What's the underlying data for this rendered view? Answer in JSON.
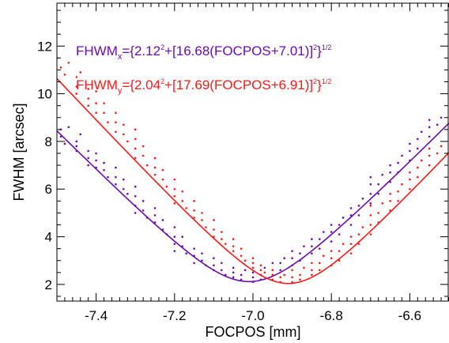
{
  "chart_data": {
    "type": "scatter",
    "xlabel": "FOCPOS [mm]",
    "ylabel": "FWHM [arcsec]",
    "xlim": [
      -7.5,
      -6.5
    ],
    "ylim": [
      1.3,
      13.8
    ],
    "x_ticks": [
      -7.4,
      -7.2,
      -7.0,
      -6.8,
      -6.6
    ],
    "x_tick_labels": [
      "-7.4",
      "-7.2",
      "-7.0",
      "-6.8",
      "-6.6"
    ],
    "y_ticks": [
      2,
      4,
      6,
      8,
      10,
      12
    ],
    "y_tick_labels": [
      "2",
      "4",
      "6",
      "8",
      "10",
      "12"
    ],
    "grid": false,
    "annotations": [
      {
        "series": "x",
        "color": "#6a0dad",
        "text_parts": [
          {
            "t": "FHWM",
            "sub": false,
            "sup": false
          },
          {
            "t": "x",
            "sub": true,
            "sup": false
          },
          {
            "t": "={2.12",
            "sub": false,
            "sup": false
          },
          {
            "t": "2",
            "sub": false,
            "sup": true
          },
          {
            "t": "+[16.68(FOCPOS+7.01)]",
            "sub": false,
            "sup": false
          },
          {
            "t": "2",
            "sub": false,
            "sup": true
          },
          {
            "t": "}",
            "sub": false,
            "sup": false
          },
          {
            "t": "1/2",
            "sub": false,
            "sup": true
          }
        ]
      },
      {
        "series": "y",
        "color": "#ff1a1a",
        "text_parts": [
          {
            "t": "FHWM",
            "sub": false,
            "sup": false
          },
          {
            "t": "y",
            "sub": true,
            "sup": false
          },
          {
            "t": "={2.04",
            "sub": false,
            "sup": false
          },
          {
            "t": "2",
            "sub": false,
            "sup": true
          },
          {
            "t": "+[17.69(FOCPOS+6.91)]",
            "sub": false,
            "sup": false
          },
          {
            "t": "2",
            "sub": false,
            "sup": true
          },
          {
            "t": "}",
            "sub": false,
            "sup": false
          },
          {
            "t": "1/2",
            "sub": false,
            "sup": true
          }
        ]
      }
    ],
    "series": [
      {
        "key": "x",
        "color": "#6a0dad",
        "fit": {
          "a": 2.12,
          "b": 16.68,
          "c": -7.01
        },
        "points": [
          [
            -7.49,
            8.5
          ],
          [
            -7.49,
            8.2
          ],
          [
            -7.48,
            7.9
          ],
          [
            -7.47,
            8.6
          ],
          [
            -7.45,
            8.0
          ],
          [
            -7.45,
            7.8
          ],
          [
            -7.45,
            7.6
          ],
          [
            -7.44,
            8.3
          ],
          [
            -7.42,
            7.6
          ],
          [
            -7.42,
            7.3
          ],
          [
            -7.42,
            7.0
          ],
          [
            -7.4,
            7.5
          ],
          [
            -7.4,
            7.2
          ],
          [
            -7.4,
            6.9
          ],
          [
            -7.38,
            7.1
          ],
          [
            -7.38,
            6.8
          ],
          [
            -7.37,
            6.5
          ],
          [
            -7.35,
            6.9
          ],
          [
            -7.35,
            6.5
          ],
          [
            -7.35,
            6.2
          ],
          [
            -7.33,
            6.4
          ],
          [
            -7.33,
            6.0
          ],
          [
            -7.32,
            5.8
          ],
          [
            -7.3,
            6.1
          ],
          [
            -7.3,
            5.7
          ],
          [
            -7.3,
            5.3
          ],
          [
            -7.3,
            5.0
          ],
          [
            -7.28,
            5.5
          ],
          [
            -7.28,
            5.1
          ],
          [
            -7.27,
            4.8
          ],
          [
            -7.25,
            5.2
          ],
          [
            -7.25,
            4.9
          ],
          [
            -7.25,
            4.6
          ],
          [
            -7.23,
            4.7
          ],
          [
            -7.23,
            4.3
          ],
          [
            -7.22,
            4.1
          ],
          [
            -7.2,
            4.4
          ],
          [
            -7.2,
            4.0
          ],
          [
            -7.2,
            3.7
          ],
          [
            -7.2,
            3.4
          ],
          [
            -7.18,
            4.0
          ],
          [
            -7.18,
            3.6
          ],
          [
            -7.17,
            3.3
          ],
          [
            -7.15,
            3.5
          ],
          [
            -7.15,
            3.2
          ],
          [
            -7.15,
            2.9
          ],
          [
            -7.13,
            3.3
          ],
          [
            -7.13,
            3.0
          ],
          [
            -7.12,
            2.8
          ],
          [
            -7.1,
            3.1
          ],
          [
            -7.1,
            2.8
          ],
          [
            -7.1,
            2.6
          ],
          [
            -7.08,
            2.9
          ],
          [
            -7.08,
            2.6
          ],
          [
            -7.07,
            2.4
          ],
          [
            -7.05,
            2.7
          ],
          [
            -7.05,
            2.5
          ],
          [
            -7.05,
            2.3
          ],
          [
            -7.03,
            2.4
          ],
          [
            -7.03,
            2.2
          ],
          [
            -7.02,
            2.6
          ],
          [
            -7.0,
            2.3
          ],
          [
            -7.0,
            2.1
          ],
          [
            -7.0,
            2.5
          ],
          [
            -6.98,
            2.2
          ],
          [
            -6.98,
            2.4
          ],
          [
            -6.97,
            2.7
          ],
          [
            -6.95,
            2.4
          ],
          [
            -6.95,
            2.6
          ],
          [
            -6.95,
            2.9
          ],
          [
            -6.93,
            2.6
          ],
          [
            -6.93,
            2.9
          ],
          [
            -6.92,
            3.1
          ],
          [
            -6.9,
            2.8
          ],
          [
            -6.9,
            3.1
          ],
          [
            -6.9,
            3.4
          ],
          [
            -6.88,
            3.0
          ],
          [
            -6.88,
            3.3
          ],
          [
            -6.87,
            3.6
          ],
          [
            -6.85,
            3.3
          ],
          [
            -6.85,
            3.6
          ],
          [
            -6.85,
            3.9
          ],
          [
            -6.83,
            3.5
          ],
          [
            -6.83,
            3.9
          ],
          [
            -6.82,
            4.2
          ],
          [
            -6.8,
            3.8
          ],
          [
            -6.8,
            4.2
          ],
          [
            -6.8,
            4.5
          ],
          [
            -6.78,
            4.1
          ],
          [
            -6.78,
            4.5
          ],
          [
            -6.77,
            4.8
          ],
          [
            -6.75,
            4.5
          ],
          [
            -6.75,
            4.9
          ],
          [
            -6.75,
            5.2
          ],
          [
            -6.73,
            4.9
          ],
          [
            -6.73,
            5.3
          ],
          [
            -6.72,
            5.6
          ],
          [
            -6.7,
            5.4
          ],
          [
            -6.7,
            5.8
          ],
          [
            -6.7,
            6.2
          ],
          [
            -6.7,
            6.5
          ],
          [
            -6.68,
            5.8
          ],
          [
            -6.68,
            6.2
          ],
          [
            -6.67,
            6.6
          ],
          [
            -6.65,
            6.3
          ],
          [
            -6.65,
            6.7
          ],
          [
            -6.65,
            7.0
          ],
          [
            -6.63,
            6.7
          ],
          [
            -6.63,
            7.1
          ],
          [
            -6.62,
            7.4
          ],
          [
            -6.6,
            7.2
          ],
          [
            -6.6,
            7.6
          ],
          [
            -6.6,
            7.9
          ],
          [
            -6.58,
            7.7
          ],
          [
            -6.58,
            8.1
          ],
          [
            -6.57,
            8.4
          ],
          [
            -6.55,
            8.2
          ],
          [
            -6.55,
            8.6
          ],
          [
            -6.55,
            8.9
          ],
          [
            -6.53,
            8.7
          ],
          [
            -6.52,
            9.0
          ]
        ]
      },
      {
        "key": "y",
        "color": "#ff1a1a",
        "fit": {
          "a": 2.04,
          "b": 17.69,
          "c": -6.91
        },
        "points": [
          [
            -7.5,
            11.5
          ],
          [
            -7.49,
            11.1
          ],
          [
            -7.48,
            10.8
          ],
          [
            -7.47,
            11.3
          ],
          [
            -7.45,
            10.7
          ],
          [
            -7.45,
            10.3
          ],
          [
            -7.45,
            10.0
          ],
          [
            -7.44,
            10.9
          ],
          [
            -7.42,
            10.2
          ],
          [
            -7.42,
            9.8
          ],
          [
            -7.42,
            9.5
          ],
          [
            -7.4,
            10.1
          ],
          [
            -7.4,
            9.6
          ],
          [
            -7.4,
            9.2
          ],
          [
            -7.38,
            9.6
          ],
          [
            -7.38,
            9.2
          ],
          [
            -7.37,
            8.8
          ],
          [
            -7.35,
            9.2
          ],
          [
            -7.35,
            8.8
          ],
          [
            -7.35,
            8.4
          ],
          [
            -7.33,
            8.7
          ],
          [
            -7.33,
            8.3
          ],
          [
            -7.32,
            8.0
          ],
          [
            -7.3,
            8.5
          ],
          [
            -7.3,
            8.1
          ],
          [
            -7.3,
            7.7
          ],
          [
            -7.3,
            7.3
          ],
          [
            -7.28,
            7.8
          ],
          [
            -7.28,
            7.4
          ],
          [
            -7.27,
            7.0
          ],
          [
            -7.25,
            7.3
          ],
          [
            -7.25,
            6.9
          ],
          [
            -7.25,
            6.6
          ],
          [
            -7.23,
            6.8
          ],
          [
            -7.23,
            6.4
          ],
          [
            -7.22,
            6.1
          ],
          [
            -7.2,
            6.4
          ],
          [
            -7.2,
            6.0
          ],
          [
            -7.2,
            5.7
          ],
          [
            -7.2,
            5.4
          ],
          [
            -7.18,
            5.9
          ],
          [
            -7.18,
            5.5
          ],
          [
            -7.17,
            5.2
          ],
          [
            -7.15,
            5.5
          ],
          [
            -7.15,
            5.1
          ],
          [
            -7.15,
            4.8
          ],
          [
            -7.13,
            5.0
          ],
          [
            -7.13,
            4.7
          ],
          [
            -7.12,
            4.4
          ],
          [
            -7.1,
            4.7
          ],
          [
            -7.1,
            4.3
          ],
          [
            -7.1,
            4.0
          ],
          [
            -7.08,
            4.2
          ],
          [
            -7.08,
            3.9
          ],
          [
            -7.07,
            3.7
          ],
          [
            -7.05,
            3.9
          ],
          [
            -7.05,
            3.6
          ],
          [
            -7.05,
            3.4
          ],
          [
            -7.03,
            3.5
          ],
          [
            -7.03,
            3.2
          ],
          [
            -7.02,
            3.0
          ],
          [
            -7.0,
            3.1
          ],
          [
            -7.0,
            2.9
          ],
          [
            -7.0,
            2.7
          ],
          [
            -6.98,
            2.8
          ],
          [
            -6.98,
            2.6
          ],
          [
            -6.97,
            2.5
          ],
          [
            -6.95,
            2.6
          ],
          [
            -6.95,
            2.4
          ],
          [
            -6.95,
            2.2
          ],
          [
            -6.93,
            2.3
          ],
          [
            -6.93,
            2.1
          ],
          [
            -6.92,
            2.4
          ],
          [
            -6.9,
            2.1
          ],
          [
            -6.9,
            2.3
          ],
          [
            -6.9,
            2.6
          ],
          [
            -6.88,
            2.2
          ],
          [
            -6.88,
            2.4
          ],
          [
            -6.87,
            2.7
          ],
          [
            -6.85,
            2.4
          ],
          [
            -6.85,
            2.6
          ],
          [
            -6.85,
            2.9
          ],
          [
            -6.83,
            2.6
          ],
          [
            -6.83,
            2.9
          ],
          [
            -6.82,
            3.2
          ],
          [
            -6.8,
            2.8
          ],
          [
            -6.8,
            3.1
          ],
          [
            -6.8,
            3.4
          ],
          [
            -6.78,
            3.0
          ],
          [
            -6.78,
            3.4
          ],
          [
            -6.77,
            3.7
          ],
          [
            -6.75,
            3.3
          ],
          [
            -6.75,
            3.7
          ],
          [
            -6.75,
            4.0
          ],
          [
            -6.73,
            3.7
          ],
          [
            -6.73,
            4.1
          ],
          [
            -6.72,
            4.4
          ],
          [
            -6.7,
            4.1
          ],
          [
            -6.7,
            4.5
          ],
          [
            -6.7,
            4.9
          ],
          [
            -6.7,
            5.3
          ],
          [
            -6.68,
            4.6
          ],
          [
            -6.68,
            5.0
          ],
          [
            -6.67,
            5.4
          ],
          [
            -6.65,
            5.1
          ],
          [
            -6.65,
            5.5
          ],
          [
            -6.65,
            5.8
          ],
          [
            -6.63,
            5.5
          ],
          [
            -6.63,
            5.9
          ],
          [
            -6.62,
            6.2
          ],
          [
            -6.6,
            6.0
          ],
          [
            -6.6,
            6.4
          ],
          [
            -6.6,
            6.7
          ],
          [
            -6.58,
            6.5
          ],
          [
            -6.58,
            6.9
          ],
          [
            -6.57,
            7.2
          ],
          [
            -6.55,
            7.0
          ],
          [
            -6.55,
            7.4
          ],
          [
            -6.55,
            7.7
          ],
          [
            -6.53,
            7.5
          ],
          [
            -6.52,
            7.8
          ]
        ]
      }
    ]
  }
}
